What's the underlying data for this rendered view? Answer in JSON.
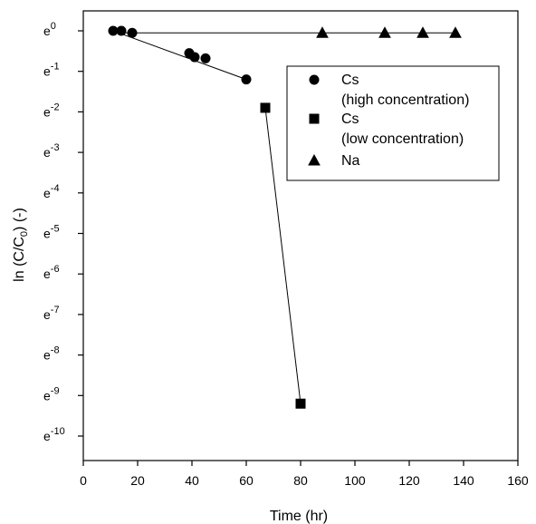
{
  "chart_data": {
    "type": "scatter",
    "xlabel": "Time (hr)",
    "ylabel_main": "ln (C/C",
    "ylabel_sub": "0",
    "ylabel_end": ") (-)",
    "xlim": [
      0,
      160
    ],
    "ylim": [
      -10,
      0
    ],
    "x_ticks": [
      "0",
      "20",
      "40",
      "60",
      "80",
      "100",
      "120",
      "140",
      "160"
    ],
    "y_ticks": [
      {
        "base": "e",
        "exp": "0",
        "value": 0
      },
      {
        "base": "e",
        "exp": "-1",
        "value": -1
      },
      {
        "base": "e",
        "exp": "-2",
        "value": -2
      },
      {
        "base": "e",
        "exp": "-3",
        "value": -3
      },
      {
        "base": "e",
        "exp": "-4",
        "value": -4
      },
      {
        "base": "e",
        "exp": "-5",
        "value": -5
      },
      {
        "base": "e",
        "exp": "-6",
        "value": -6
      },
      {
        "base": "e",
        "exp": "-7",
        "value": -7
      },
      {
        "base": "e",
        "exp": "-8",
        "value": -8
      },
      {
        "base": "e",
        "exp": "-9",
        "value": -9
      },
      {
        "base": "e",
        "exp": "-10",
        "value": -10
      }
    ],
    "grid": false,
    "legend_position": "top-right",
    "series": [
      {
        "name": "Cs",
        "name_line2": "(high concentration)",
        "marker": "circle",
        "x": [
          11,
          14,
          18,
          39,
          41,
          45,
          60
        ],
        "y": [
          0,
          0,
          -0.05,
          -0.55,
          -0.65,
          -0.68,
          -1.2
        ],
        "fit_line": {
          "x": [
            11,
            60
          ],
          "y": [
            0,
            -1.2
          ]
        }
      },
      {
        "name": "Cs",
        "name_line2": " (low concentration)",
        "marker": "square",
        "x": [
          67,
          80
        ],
        "y": [
          -1.9,
          -9.2
        ],
        "fit_line": {
          "x": [
            67,
            80
          ],
          "y": [
            -1.9,
            -9.2
          ]
        }
      },
      {
        "name": "Na",
        "name_line2": "",
        "marker": "triangle",
        "x": [
          88,
          111,
          125,
          137
        ],
        "y": [
          -0.05,
          -0.05,
          -0.05,
          -0.05
        ],
        "fit_line": {
          "x": [
            11,
            137
          ],
          "y": [
            -0.05,
            -0.05
          ]
        }
      }
    ]
  }
}
